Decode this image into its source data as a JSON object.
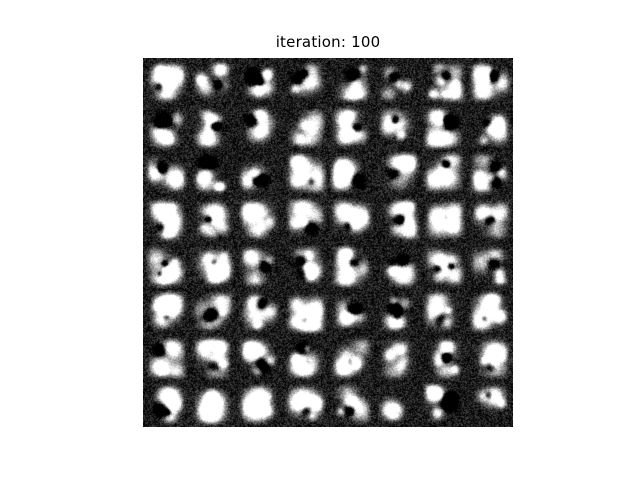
{
  "figure": {
    "title": "iteration: 100",
    "grid": {
      "rows": 8,
      "cols": 8
    },
    "colormap": "grayscale"
  }
}
